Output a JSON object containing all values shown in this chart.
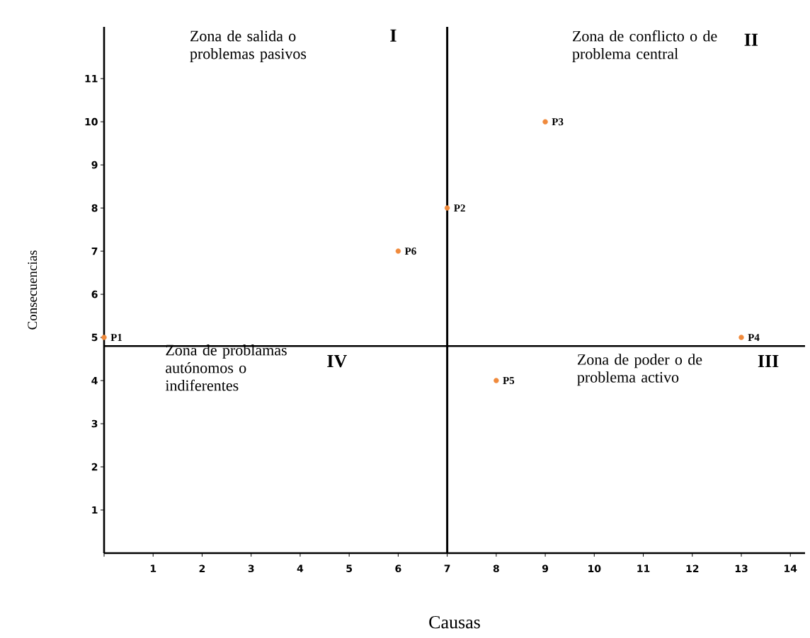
{
  "chart_data": {
    "type": "scatter",
    "xlabel": "Causas",
    "ylabel": "Consecuencias",
    "x": [
      0,
      7,
      9,
      13,
      8,
      6
    ],
    "series": [
      {
        "color": "#f08a3c",
        "values": [
          5,
          8,
          10,
          5,
          4,
          7
        ],
        "value_labels": [
          "P1",
          "P2",
          "P3",
          "P4",
          "P5",
          "P6"
        ]
      }
    ],
    "marker": "circle",
    "xlim": [
      0,
      14.3
    ],
    "ylim": [
      0,
      12.2
    ],
    "xticks": [
      {
        "value": 0,
        "label": null
      },
      1,
      2,
      3,
      4,
      5,
      6,
      7,
      8,
      9,
      10,
      11,
      12,
      13,
      14
    ],
    "yticks": [
      1,
      2,
      3,
      4,
      5,
      6,
      7,
      8,
      9,
      10,
      11
    ],
    "ref_lines": [
      {
        "axis": "x",
        "value": 7,
        "color": "#000000"
      },
      {
        "axis": "y",
        "value": 4.8,
        "color": "#000000"
      }
    ],
    "annotations": [
      "Zona de salida o problemas pasivos",
      "I",
      "Zona de conflicto o de problema central",
      "II",
      "Zona de problamas autónomos o indiferentes",
      "IV",
      "Zona de poder o de problema activo",
      "III"
    ],
    "grid": false
  }
}
